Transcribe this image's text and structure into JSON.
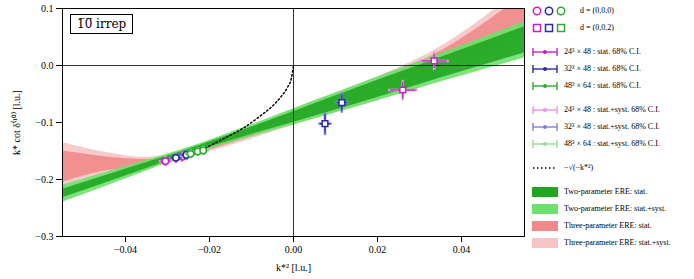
{
  "chart_data": {
    "type": "scatter",
    "annotation": "1̅0̅ irrep",
    "x_label": "k*² [l.u.]",
    "y_label": "k* cot δ⁽¹⁰⁾ [l.u.]",
    "xlim": [
      -0.055,
      0.055
    ],
    "xticks": [
      -0.04,
      -0.02,
      {
        "value": 0,
        "label": "0.00"
      },
      0.02,
      0.04
    ],
    "ylim": [
      -0.3,
      0.1
    ],
    "yticks": [
      -0.3,
      -0.2,
      -0.1,
      {
        "value": 0,
        "label": "0.0"
      },
      0.1
    ],
    "grid": false,
    "reference_lines": {
      "x": 0,
      "y": 0
    },
    "markers": [
      {
        "name": "d = (0,0,0)",
        "marker": "circle"
      },
      {
        "name": "d = (0,0,2)",
        "marker": "square"
      }
    ],
    "series": [
      {
        "name": "24³ × 48 : stat. 68% C.I.",
        "syst_name": "24³ × 48 : stat.+syst. 68% C.I.",
        "color": "#c71fc7",
        "syst_color": "#ee8fee",
        "points": [
          {
            "x": -0.0305,
            "y": -0.168,
            "xerr": 0.0012,
            "yerr": 0.006,
            "xerr_syst": 0.0016,
            "yerr_syst": 0.009,
            "marker": "circle"
          },
          {
            "x": -0.0265,
            "y": -0.16,
            "xerr": 0.0012,
            "yerr": 0.006,
            "xerr_syst": 0.0016,
            "yerr_syst": 0.009,
            "marker": "circle"
          },
          {
            "x": 0.026,
            "y": -0.043,
            "xerr": 0.003,
            "yerr": 0.014,
            "xerr_syst": 0.0035,
            "yerr_syst": 0.018,
            "marker": "square"
          },
          {
            "x": 0.0335,
            "y": 0.008,
            "xerr": 0.003,
            "yerr": 0.012,
            "xerr_syst": 0.0035,
            "yerr_syst": 0.016,
            "marker": "square"
          }
        ]
      },
      {
        "name": "32³ × 48 : stat. 68% C.I.",
        "syst_name": "32³ × 48 : stat.+syst. 68% C.I.",
        "color": "#2a2aa8",
        "syst_color": "#7f7fe0",
        "points": [
          {
            "x": -0.028,
            "y": -0.162,
            "xerr": 0.0012,
            "yerr": 0.006,
            "xerr_syst": 0.0016,
            "yerr_syst": 0.009,
            "marker": "circle"
          },
          {
            "x": -0.0255,
            "y": -0.157,
            "xerr": 0.0012,
            "yerr": 0.006,
            "xerr_syst": 0.0016,
            "yerr_syst": 0.009,
            "marker": "circle"
          },
          {
            "x": 0.0075,
            "y": -0.102,
            "xerr": 0.0012,
            "yerr": 0.016,
            "xerr_syst": 0.0016,
            "yerr_syst": 0.02,
            "marker": "square"
          },
          {
            "x": 0.0115,
            "y": -0.065,
            "xerr": 0.0012,
            "yerr": 0.014,
            "xerr_syst": 0.0016,
            "yerr_syst": 0.018,
            "marker": "square"
          }
        ]
      },
      {
        "name": "48³ × 64 : stat. 68% C.I.",
        "syst_name": "48³ × 64 : stat.+syst. 68% C.I.",
        "color": "#2eaa2e",
        "syst_color": "#8fdf8f",
        "points": [
          {
            "x": -0.0245,
            "y": -0.155,
            "xerr": 0.001,
            "yerr": 0.005,
            "xerr_syst": 0.0014,
            "yerr_syst": 0.008,
            "marker": "circle"
          },
          {
            "x": -0.0228,
            "y": -0.151,
            "xerr": 0.001,
            "yerr": 0.005,
            "xerr_syst": 0.0014,
            "yerr_syst": 0.008,
            "marker": "circle"
          },
          {
            "x": -0.0215,
            "y": -0.149,
            "xerr": 0.001,
            "yerr": 0.005,
            "xerr_syst": 0.0014,
            "yerr_syst": 0.008,
            "marker": "circle"
          }
        ]
      }
    ],
    "curve": {
      "name": "−√(−k*²)",
      "color": "#000000",
      "line_style": "dotted",
      "x": [
        -0.021,
        -0.016,
        -0.012,
        -0.008,
        -0.005,
        -0.003,
        -0.0015,
        -0.0005,
        0
      ],
      "y": [
        -0.145,
        -0.126,
        -0.11,
        -0.089,
        -0.071,
        -0.055,
        -0.039,
        -0.022,
        0
      ]
    },
    "bands": [
      {
        "name": "Two-parameter ERE: stat.",
        "color": "#22a622",
        "x": [
          -0.055,
          -0.04,
          -0.025,
          -0.01,
          0.005,
          0.02,
          0.035,
          0.055
        ],
        "lower": [
          -0.232,
          -0.194,
          -0.155,
          -0.121,
          -0.089,
          -0.056,
          -0.022,
          0.022
        ],
        "upper": [
          -0.217,
          -0.182,
          -0.147,
          -0.108,
          -0.067,
          -0.026,
          0.014,
          0.068
        ]
      },
      {
        "name": "Two-parameter ERE: stat.+syst.",
        "color": "#6ee06e",
        "x": [
          -0.055,
          -0.04,
          -0.025,
          -0.01,
          0.005,
          0.02,
          0.035,
          0.055
        ],
        "lower": [
          -0.24,
          -0.199,
          -0.158,
          -0.125,
          -0.094,
          -0.062,
          -0.029,
          0.013
        ],
        "upper": [
          -0.21,
          -0.177,
          -0.144,
          -0.104,
          -0.062,
          -0.02,
          0.021,
          0.077
        ]
      },
      {
        "name": "Three-parameter ERE: stat.",
        "color": "#f08a8a",
        "x": [
          -0.055,
          -0.045,
          -0.035,
          -0.025,
          -0.01,
          0.005,
          0.02,
          0.035,
          0.055
        ],
        "lower": [
          -0.205,
          -0.185,
          -0.178,
          -0.159,
          -0.125,
          -0.088,
          -0.056,
          -0.015,
          0.055
        ],
        "upper": [
          -0.15,
          -0.16,
          -0.165,
          -0.15,
          -0.112,
          -0.067,
          -0.026,
          0.025,
          0.125
        ]
      },
      {
        "name": "Three-parameter ERE: stat.+syst.",
        "color": "#f8c4c4",
        "x": [
          -0.055,
          -0.045,
          -0.035,
          -0.025,
          -0.01,
          0.005,
          0.02,
          0.035,
          0.055
        ],
        "lower": [
          -0.215,
          -0.19,
          -0.181,
          -0.162,
          -0.129,
          -0.093,
          -0.062,
          -0.022,
          0.04
        ],
        "upper": [
          -0.135,
          -0.152,
          -0.161,
          -0.147,
          -0.108,
          -0.062,
          -0.02,
          0.033,
          0.14
        ]
      }
    ]
  }
}
